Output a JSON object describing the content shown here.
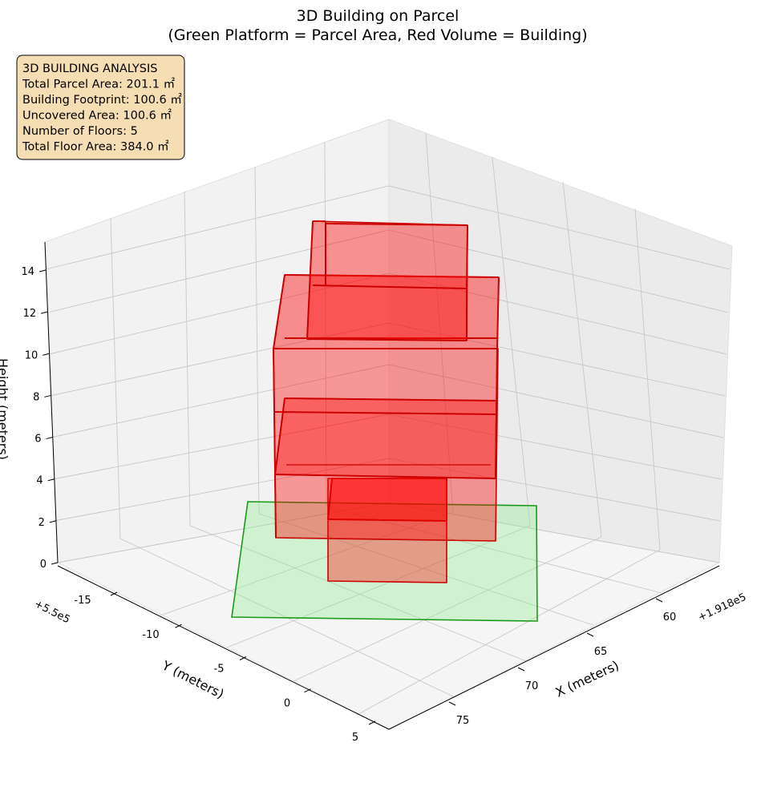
{
  "chart_data": {
    "type": "3d-bar",
    "title": "3D Building on Parcel",
    "subtitle": "(Green Platform = Parcel Area, Red Volume = Building)",
    "xlabel": "X (meters)",
    "ylabel": "Y (meters)",
    "zlabel": "Height (meters)",
    "x_offset_label": "+1.918e5",
    "y_offset_label": "+5.5e5",
    "x_ticks": [
      "60",
      "65",
      "70",
      "75"
    ],
    "y_ticks": [
      "-15",
      "-10",
      "-5",
      "0",
      "5"
    ],
    "z_ticks": [
      "0",
      "2",
      "4",
      "6",
      "8",
      "10",
      "12",
      "14"
    ],
    "annotation": [
      "3D BUILDING ANALYSIS",
      "Total Parcel Area: 201.1 ㎡",
      "Building Footprint: 100.6 ㎡",
      "Uncovered Area: 100.6 ㎡",
      "Number of Floors: 5",
      "Total Floor Area: 384.0 ㎡"
    ],
    "parcel": {
      "name": "Parcel Area",
      "color": "#90ee90"
    },
    "building": {
      "name": "Building",
      "color": "#ff0000",
      "edge_color": "#cc0000"
    },
    "grid": true
  }
}
